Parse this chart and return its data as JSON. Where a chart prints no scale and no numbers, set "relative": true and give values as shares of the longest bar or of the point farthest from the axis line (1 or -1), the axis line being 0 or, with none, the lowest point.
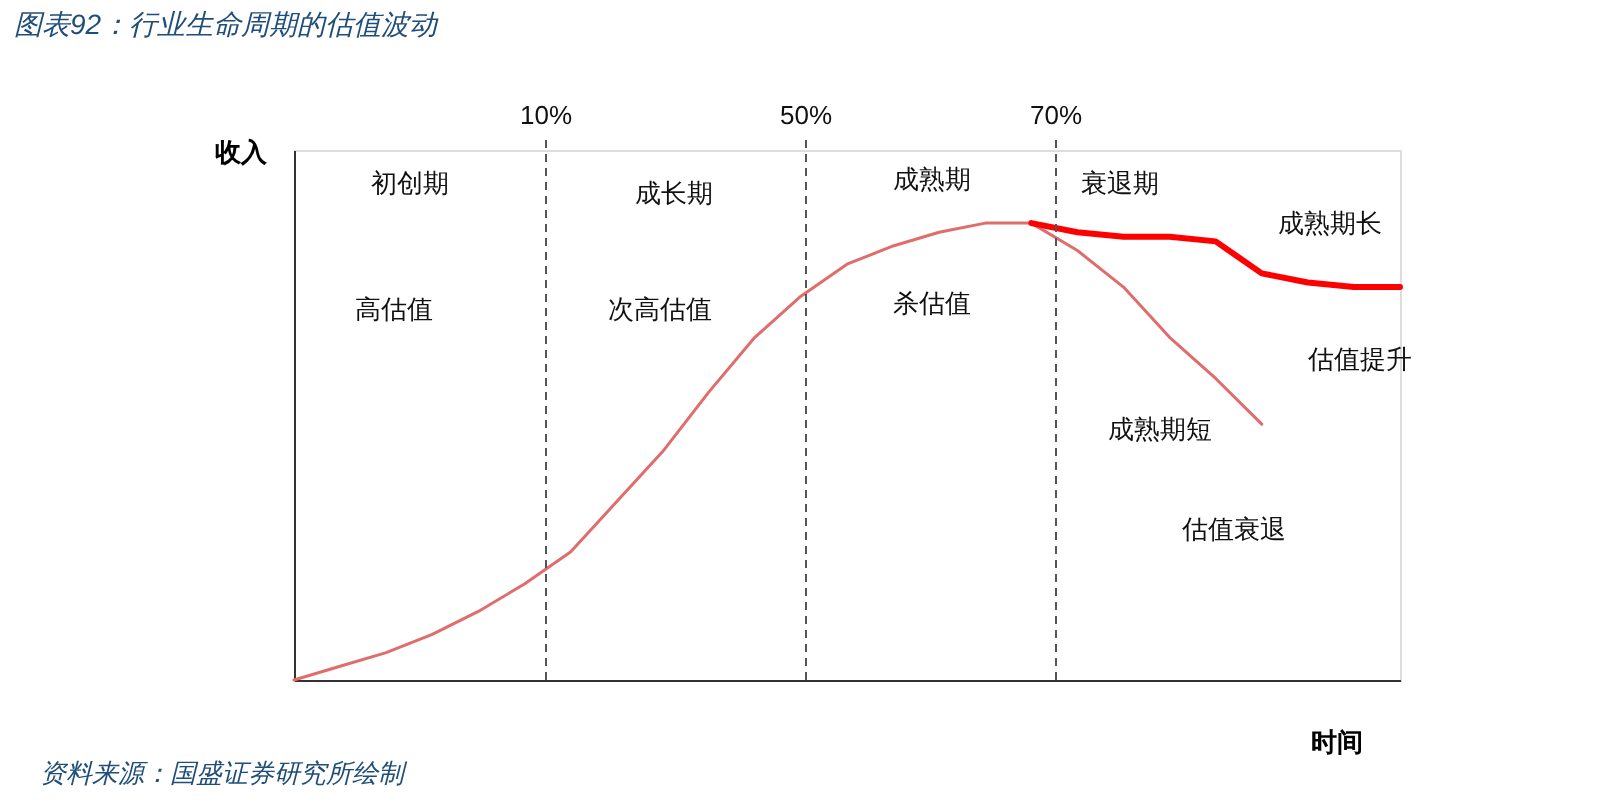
{
  "chart_data": {
    "type": "line",
    "title": "图表92：行业生命周期的估值波动",
    "xlabel": "时间",
    "ylabel": "收入",
    "relative": true,
    "tick_labels": false,
    "grid": false,
    "legend": false,
    "marker": "none",
    "line_style": "solid",
    "categories": [
      null,
      null,
      null,
      null,
      null,
      null,
      null,
      null,
      null,
      null,
      null,
      null,
      null,
      null,
      null,
      null,
      null,
      null,
      null,
      null,
      null,
      null,
      null,
      null,
      null
    ],
    "series": [
      {
        "color": "#e06c6c",
        "values": [
          0,
          0.03,
          0.06,
          0.1,
          0.15,
          0.21,
          0.28,
          0.39,
          0.5,
          0.63,
          0.75,
          0.84,
          0.91,
          0.95,
          0.98,
          1.0,
          1.0,
          0.94,
          0.86,
          0.75,
          0.66,
          0.56,
          null,
          null,
          null
        ]
      },
      {
        "color": "#ff0000",
        "values": [
          null,
          null,
          null,
          null,
          null,
          null,
          null,
          null,
          null,
          null,
          null,
          null,
          null,
          null,
          null,
          null,
          1.0,
          0.98,
          0.97,
          0.97,
          0.96,
          0.89,
          0.87,
          0.86,
          0.86
        ]
      }
    ],
    "ref_lines": [
      {
        "axis": "x",
        "label": "10%",
        "line_style": "dashed",
        "color": "#555555"
      },
      {
        "axis": "x",
        "label": "50%",
        "line_style": "dashed",
        "color": "#555555"
      },
      {
        "axis": "x",
        "label": "70%",
        "line_style": "dashed",
        "color": "#555555"
      }
    ],
    "annotations": [
      "初创期",
      "成长期",
      "成熟期",
      "衰退期",
      "高估值",
      "次高估值",
      "杀估值",
      "成熟期长",
      "估值提升",
      "成熟期短",
      "估值衰退",
      "资料来源：国盛证券研究所绘制"
    ]
  }
}
